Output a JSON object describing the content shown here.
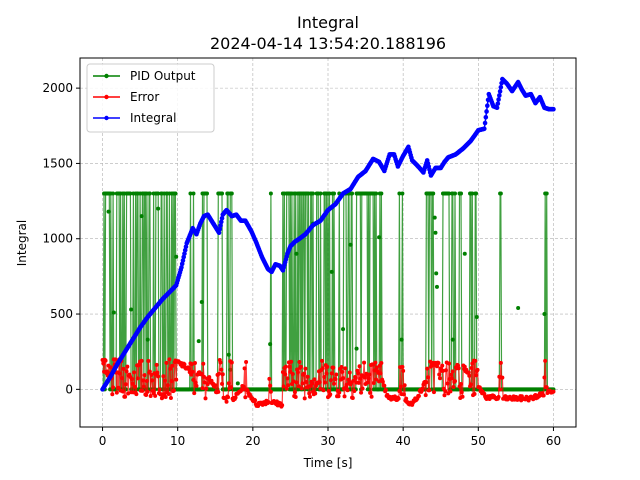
{
  "chart_data": {
    "type": "line",
    "title": "Integral",
    "subtitle": "2024-04-14 13:54:20.188196",
    "xlabel": "Time [s]",
    "ylabel": "Integral",
    "xlim": [
      -3,
      63
    ],
    "ylim": [
      -250,
      2200
    ],
    "xticks": [
      0,
      10,
      20,
      30,
      40,
      50,
      60
    ],
    "yticks": [
      0,
      500,
      1000,
      1500,
      2000
    ],
    "grid": true,
    "legend_position": "top-left",
    "series": [
      {
        "name": "PID Output",
        "color": "#008000",
        "behavior": "switching",
        "levels": [
          0,
          1300
        ],
        "on_intervals": [
          [
            0.2,
            9.8
          ],
          [
            11.5,
            12.5
          ],
          [
            13.2,
            14.0
          ],
          [
            15.0,
            16.0
          ],
          [
            16.5,
            17.2
          ],
          [
            18.8,
            19.1
          ],
          [
            22.2,
            22.5
          ],
          [
            24.0,
            36.5
          ],
          [
            36.8,
            37.2
          ],
          [
            39.5,
            40.3
          ],
          [
            43.0,
            44.2
          ],
          [
            44.8,
            47.0
          ],
          [
            47.5,
            48.0
          ],
          [
            48.8,
            50.0
          ],
          [
            52.8,
            53.3
          ],
          [
            58.8,
            59.2
          ]
        ],
        "partial_points": [
          [
            0.8,
            1180
          ],
          [
            1.5,
            510
          ],
          [
            3.8,
            530
          ],
          [
            5.2,
            1150
          ],
          [
            6.0,
            330
          ],
          [
            7.4,
            1200
          ],
          [
            9.8,
            880
          ],
          [
            12.8,
            320
          ],
          [
            13.2,
            580
          ],
          [
            16.8,
            230
          ],
          [
            17.0,
            130
          ],
          [
            18.0,
            40
          ],
          [
            22.3,
            300
          ],
          [
            25.8,
            900
          ],
          [
            28.0,
            1100
          ],
          [
            30.5,
            780
          ],
          [
            32.0,
            400
          ],
          [
            33.0,
            960
          ],
          [
            33.8,
            270
          ],
          [
            36.8,
            1010
          ],
          [
            39.8,
            330
          ],
          [
            44.2,
            1140
          ],
          [
            44.3,
            1040
          ],
          [
            44.4,
            770
          ],
          [
            44.5,
            680
          ],
          [
            46.6,
            330
          ],
          [
            48.2,
            900
          ],
          [
            49.8,
            480
          ],
          [
            55.3,
            540
          ],
          [
            58.8,
            500
          ]
        ]
      },
      {
        "name": "Error",
        "color": "#ff0000",
        "behavior": "noisy",
        "band_when_on": [
          -60,
          200
        ],
        "trough_points": [
          [
            10.0,
            180
          ],
          [
            11.0,
            150
          ],
          [
            14.5,
            60
          ],
          [
            16.0,
            -60
          ],
          [
            17.2,
            -80
          ],
          [
            18.8,
            20
          ],
          [
            20.5,
            -100
          ],
          [
            22.0,
            -80
          ],
          [
            23.8,
            -100
          ],
          [
            36.5,
            150
          ],
          [
            38.0,
            -60
          ],
          [
            40.0,
            -60
          ],
          [
            41.2,
            -100
          ],
          [
            42.5,
            0
          ],
          [
            44.0,
            170
          ],
          [
            48.0,
            150
          ],
          [
            51.0,
            -50
          ],
          [
            53.0,
            -60
          ],
          [
            54.5,
            -60
          ],
          [
            57.0,
            -60
          ],
          [
            60.0,
            -5
          ]
        ]
      },
      {
        "name": "Integral",
        "color": "#0000ff",
        "behavior": "smooth",
        "points": [
          [
            0,
            0
          ],
          [
            1,
            80
          ],
          [
            2,
            170
          ],
          [
            3,
            250
          ],
          [
            4,
            330
          ],
          [
            5,
            410
          ],
          [
            6,
            480
          ],
          [
            7,
            540
          ],
          [
            8,
            600
          ],
          [
            9,
            650
          ],
          [
            9.8,
            690
          ],
          [
            10.5,
            810
          ],
          [
            11.2,
            970
          ],
          [
            12.0,
            1070
          ],
          [
            12.5,
            1030
          ],
          [
            13.0,
            1100
          ],
          [
            13.5,
            1150
          ],
          [
            14.0,
            1160
          ],
          [
            14.5,
            1120
          ],
          [
            15.0,
            1080
          ],
          [
            15.5,
            1040
          ],
          [
            16.0,
            1160
          ],
          [
            16.5,
            1190
          ],
          [
            17.2,
            1150
          ],
          [
            17.8,
            1160
          ],
          [
            18.4,
            1120
          ],
          [
            19.0,
            1120
          ],
          [
            19.8,
            1050
          ],
          [
            20.5,
            970
          ],
          [
            21.2,
            880
          ],
          [
            22.0,
            800
          ],
          [
            22.5,
            780
          ],
          [
            23.0,
            830
          ],
          [
            23.6,
            820
          ],
          [
            24.0,
            790
          ],
          [
            24.6,
            900
          ],
          [
            25.0,
            950
          ],
          [
            25.6,
            980
          ],
          [
            26.2,
            1000
          ],
          [
            27.0,
            1030
          ],
          [
            28.0,
            1090
          ],
          [
            29.0,
            1120
          ],
          [
            30.0,
            1190
          ],
          [
            31.0,
            1230
          ],
          [
            32.0,
            1300
          ],
          [
            33.0,
            1330
          ],
          [
            34.0,
            1410
          ],
          [
            35.0,
            1450
          ],
          [
            36.0,
            1530
          ],
          [
            36.8,
            1510
          ],
          [
            37.5,
            1450
          ],
          [
            38.2,
            1560
          ],
          [
            38.8,
            1560
          ],
          [
            39.3,
            1480
          ],
          [
            40.0,
            1550
          ],
          [
            40.7,
            1610
          ],
          [
            41.2,
            1520
          ],
          [
            42.0,
            1480
          ],
          [
            42.7,
            1440
          ],
          [
            43.2,
            1520
          ],
          [
            43.7,
            1420
          ],
          [
            44.3,
            1470
          ],
          [
            45.0,
            1470
          ],
          [
            45.5,
            1510
          ],
          [
            46.0,
            1540
          ],
          [
            47.0,
            1560
          ],
          [
            48.0,
            1600
          ],
          [
            49.0,
            1650
          ],
          [
            50.0,
            1720
          ],
          [
            50.8,
            1730
          ],
          [
            51.4,
            1960
          ],
          [
            52.0,
            1880
          ],
          [
            52.5,
            1870
          ],
          [
            53.2,
            2060
          ],
          [
            53.8,
            2030
          ],
          [
            54.5,
            1980
          ],
          [
            55.3,
            2040
          ],
          [
            55.8,
            1990
          ],
          [
            56.3,
            1950
          ],
          [
            57.0,
            1960
          ],
          [
            57.6,
            1900
          ],
          [
            58.2,
            1940
          ],
          [
            58.8,
            1870
          ],
          [
            59.4,
            1860
          ],
          [
            60.0,
            1860
          ]
        ]
      }
    ]
  }
}
